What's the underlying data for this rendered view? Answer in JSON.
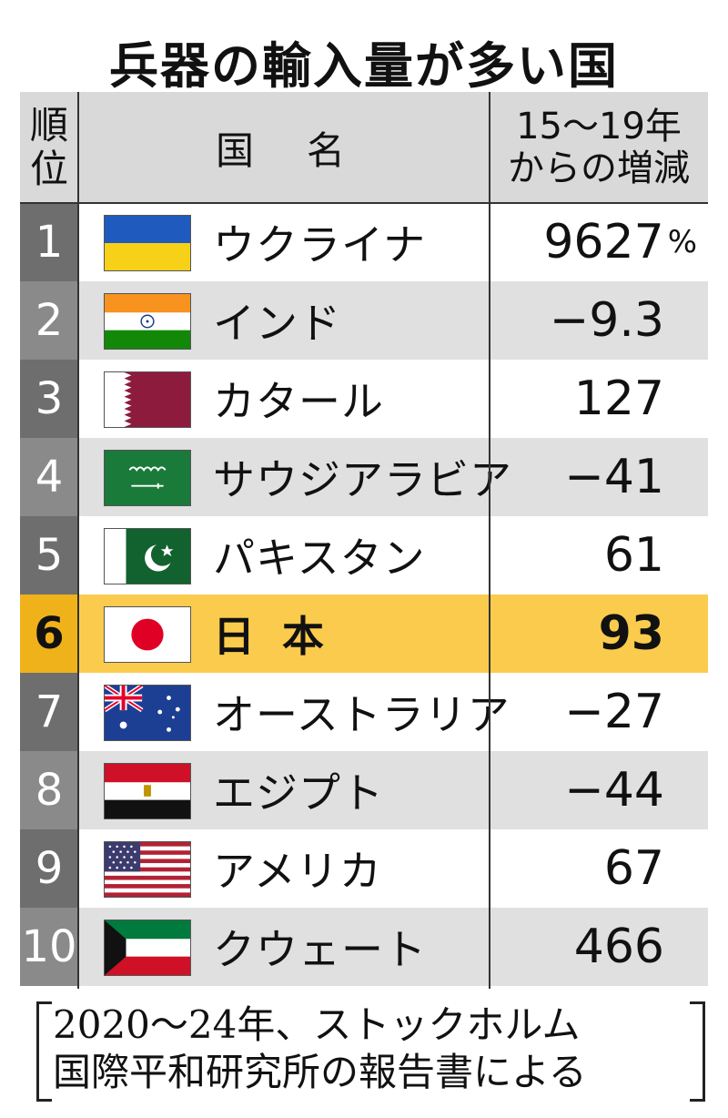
{
  "title": "兵器の輸入量が多い国",
  "header": {
    "rank_line1": "順",
    "rank_line2": "位",
    "name": "国　名",
    "change_line1": "15〜19年",
    "change_line2": "からの増減"
  },
  "rows": [
    {
      "rank": "1",
      "country": "ウクライナ",
      "value": "9627",
      "unit": "%",
      "flag": "ukraine-flag-icon"
    },
    {
      "rank": "2",
      "country": "インド",
      "value": "−9.3",
      "flag": "india-flag-icon"
    },
    {
      "rank": "3",
      "country": "カタール",
      "value": "127",
      "flag": "qatar-flag-icon"
    },
    {
      "rank": "4",
      "country": "サウジアラビア",
      "value": "−41",
      "flag": "saudi-arabia-flag-icon"
    },
    {
      "rank": "5",
      "country": "パキスタン",
      "value": "61",
      "flag": "pakistan-flag-icon"
    },
    {
      "rank": "6",
      "country": "日本",
      "value": "93",
      "flag": "japan-flag-icon"
    },
    {
      "rank": "7",
      "country": "オーストラリア",
      "value": "−27",
      "flag": "australia-flag-icon"
    },
    {
      "rank": "8",
      "country": "エジプト",
      "value": "−44",
      "flag": "egypt-flag-icon"
    },
    {
      "rank": "9",
      "country": "アメリカ",
      "value": "67",
      "flag": "usa-flag-icon"
    },
    {
      "rank": "10",
      "country": "クウェート",
      "value": "466",
      "flag": "kuwait-flag-icon"
    }
  ],
  "source": {
    "line1": "2020〜24年、ストックホルム",
    "line2": "国際平和研究所の報告書による"
  },
  "colors": {
    "highlight_row": "#fbcb4d",
    "highlight_rank": "#f0b21a",
    "rank_dark": "#6e6e6e",
    "stripe": "#e0e0e0"
  }
}
